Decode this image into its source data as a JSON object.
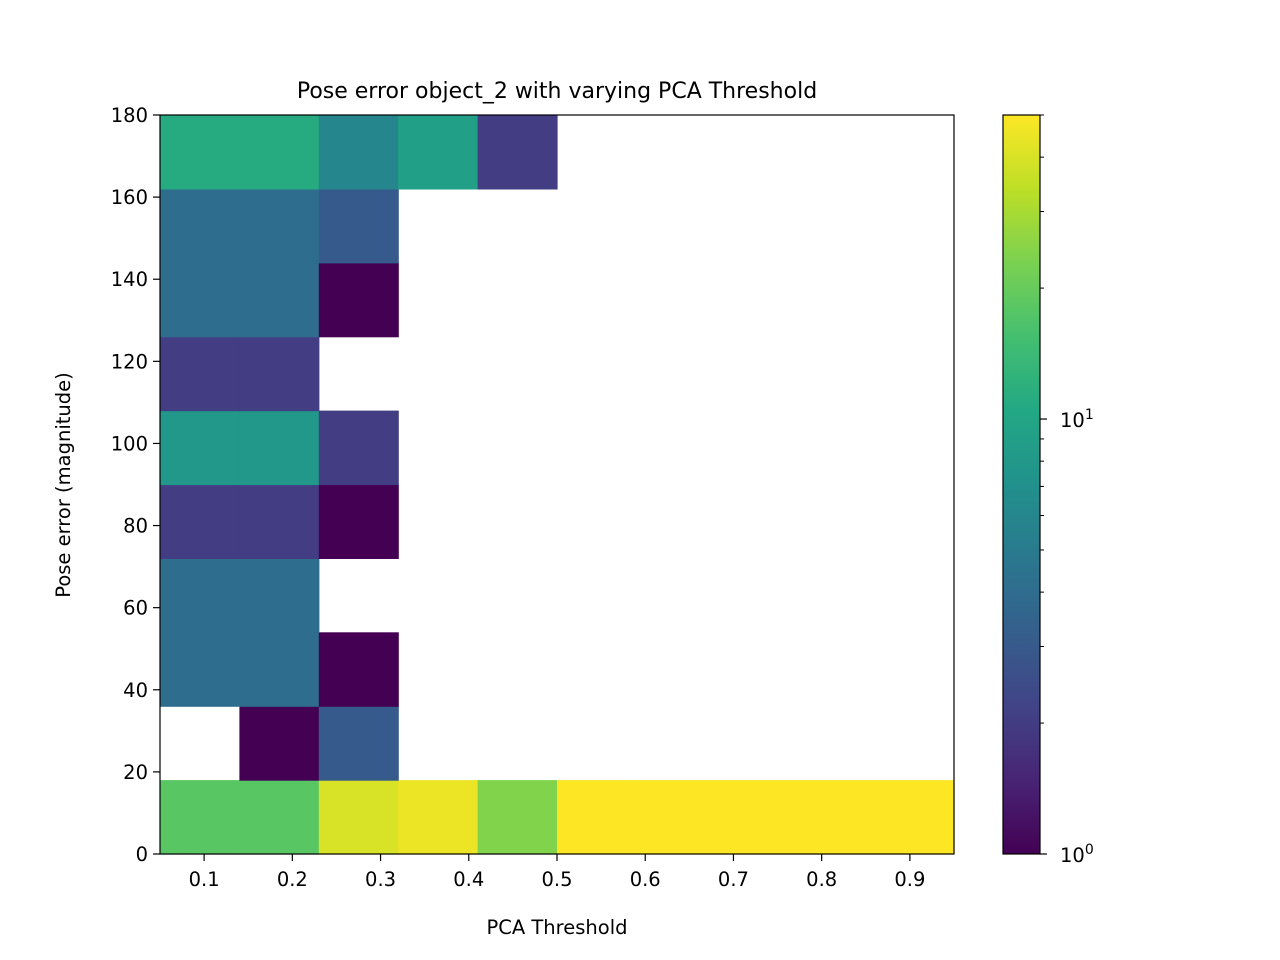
{
  "chart_data": {
    "type": "heatmap",
    "title": "Pose error object_2 with varying PCA Threshold",
    "xlabel": "PCA Threshold",
    "ylabel": "Pose error (magnitude)",
    "x_bin_edges": [
      0.05,
      0.14,
      0.23,
      0.32,
      0.41,
      0.5,
      0.59,
      0.68,
      0.77,
      0.86,
      0.95
    ],
    "y_bin_edges": [
      0,
      18,
      36,
      54,
      72,
      90,
      108,
      126,
      144,
      162,
      180
    ],
    "xlim": [
      0.05,
      0.95
    ],
    "ylim": [
      0,
      180
    ],
    "x_ticks": [
      0.1,
      0.2,
      0.3,
      0.4,
      0.5,
      0.6,
      0.7,
      0.8,
      0.9
    ],
    "x_tick_labels": [
      "0.1",
      "0.2",
      "0.3",
      "0.4",
      "0.5",
      "0.6",
      "0.7",
      "0.8",
      "0.9"
    ],
    "y_ticks": [
      0,
      20,
      40,
      60,
      80,
      100,
      120,
      140,
      160,
      180
    ],
    "y_tick_labels": [
      "0",
      "20",
      "40",
      "60",
      "80",
      "100",
      "120",
      "140",
      "160",
      "180"
    ],
    "counts_note": "rows ordered from bottom bin (0-18) to top bin (162-180); columns follow x_bin_edges; 0 = empty cell",
    "counts": [
      [
        18,
        18,
        40,
        45,
        24,
        50,
        50,
        50,
        50,
        50
      ],
      [
        0,
        1,
        3,
        0,
        0,
        0,
        0,
        0,
        0,
        0
      ],
      [
        4,
        4,
        1,
        0,
        0,
        0,
        0,
        0,
        0,
        0
      ],
      [
        4,
        4,
        0,
        0,
        0,
        0,
        0,
        0,
        0,
        0
      ],
      [
        2,
        2,
        1,
        0,
        0,
        0,
        0,
        0,
        0,
        0
      ],
      [
        8,
        8,
        2,
        0,
        0,
        0,
        0,
        0,
        0,
        0
      ],
      [
        2,
        2,
        0,
        0,
        0,
        0,
        0,
        0,
        0,
        0
      ],
      [
        4,
        4,
        1,
        0,
        0,
        0,
        0,
        0,
        0,
        0
      ],
      [
        4,
        4,
        3,
        0,
        0,
        0,
        0,
        0,
        0,
        0
      ],
      [
        11,
        11,
        6,
        9,
        2,
        0,
        0,
        0,
        0,
        0
      ]
    ],
    "colorbar": {
      "scale": "log",
      "colormap": "viridis",
      "range": [
        1,
        50
      ],
      "tick_labels": [
        "10^0",
        "10^1"
      ]
    },
    "grid": false,
    "legend": "none"
  }
}
